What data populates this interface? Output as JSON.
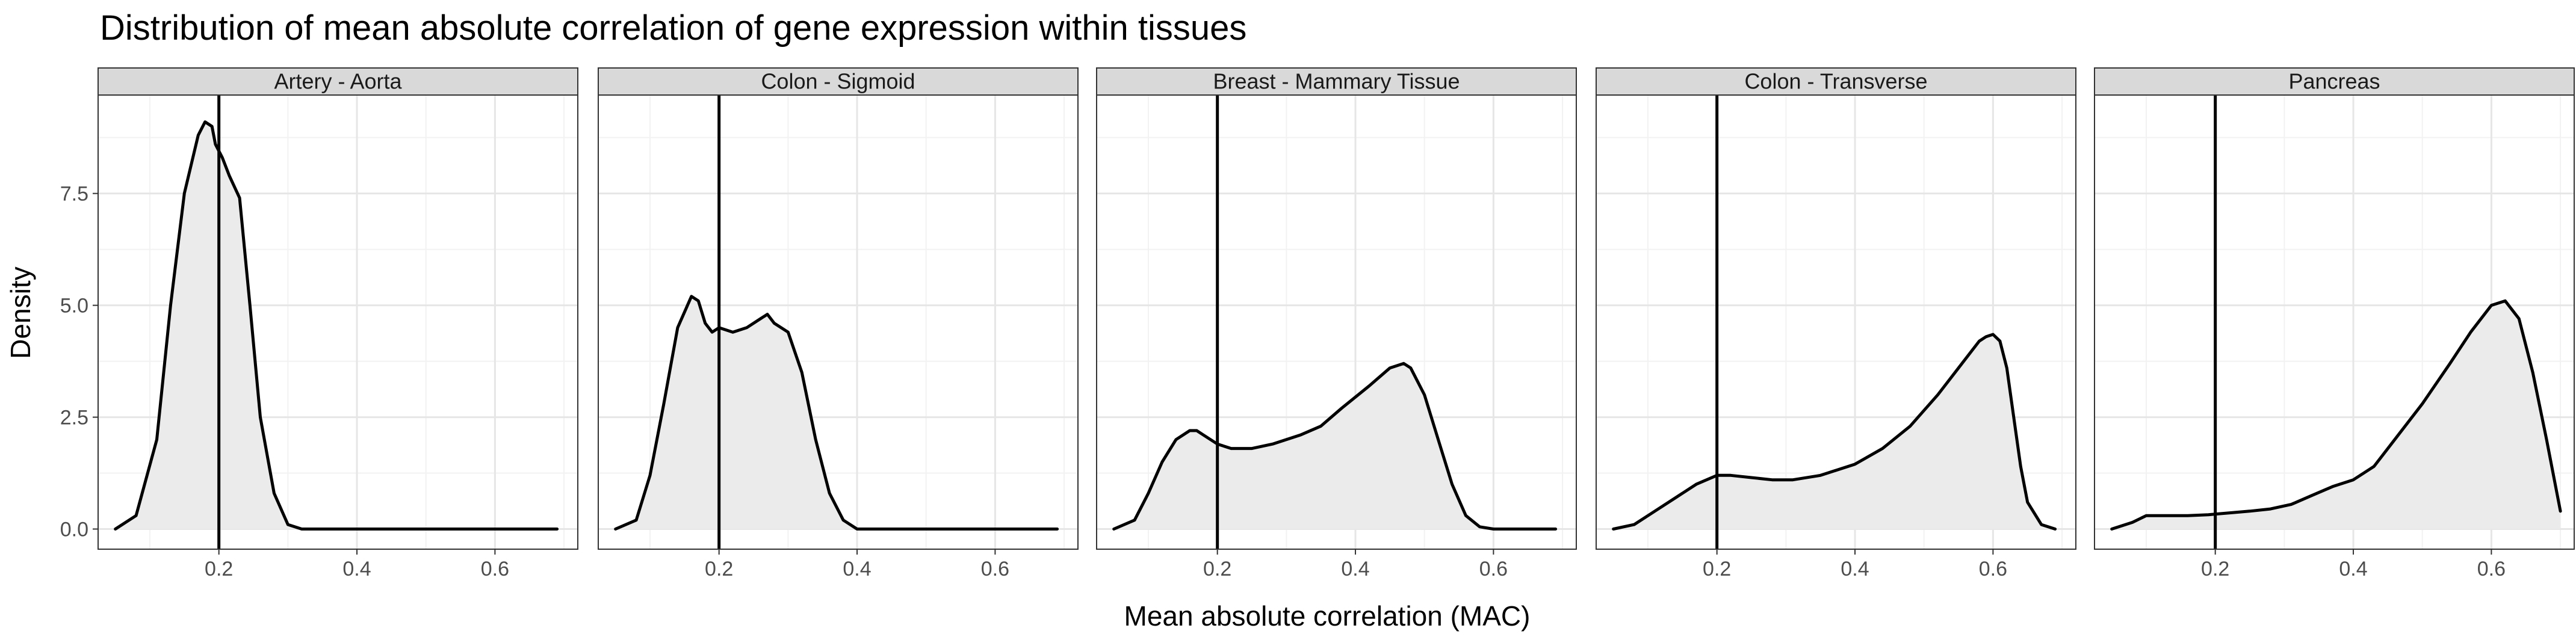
{
  "chart_data": {
    "type": "area",
    "title": "Distribution of mean absolute correlation of gene expression within tissues",
    "xlabel": "Mean absolute correlation (MAC)",
    "ylabel": "Density",
    "xlim": [
      0.025,
      0.72
    ],
    "ylim": [
      -0.45,
      9.7
    ],
    "x_ticks": [
      0.2,
      0.4,
      0.6
    ],
    "x_tick_labels": [
      "0.2",
      "0.4",
      "0.6"
    ],
    "y_ticks": [
      0,
      2.5,
      5,
      7.5
    ],
    "y_tick_labels": [
      "0.0",
      "2.5",
      "5.0",
      "7.5"
    ],
    "vline_x": 0.2,
    "grid": true,
    "line_color": "#000000",
    "fill_color": "#ebebeb",
    "strip_color": "#d9d9d9",
    "panels": [
      {
        "name": "Artery - Aorta",
        "x": [
          0.05,
          0.08,
          0.11,
          0.13,
          0.15,
          0.17,
          0.18,
          0.19,
          0.195,
          0.205,
          0.215,
          0.23,
          0.245,
          0.26,
          0.28,
          0.3,
          0.32,
          0.4,
          0.5,
          0.6,
          0.69
        ],
        "y": [
          0.0,
          0.3,
          2.0,
          5.0,
          7.5,
          8.8,
          9.1,
          9.0,
          8.6,
          8.3,
          7.9,
          7.4,
          5.0,
          2.5,
          0.8,
          0.1,
          0.0,
          0.0,
          0.0,
          0.0,
          0.0
        ]
      },
      {
        "name": "Colon - Sigmoid",
        "x": [
          0.05,
          0.08,
          0.1,
          0.12,
          0.14,
          0.16,
          0.17,
          0.18,
          0.19,
          0.2,
          0.22,
          0.24,
          0.26,
          0.27,
          0.28,
          0.3,
          0.32,
          0.34,
          0.36,
          0.38,
          0.4,
          0.45,
          0.55,
          0.69
        ],
        "y": [
          0.0,
          0.2,
          1.2,
          2.8,
          4.5,
          5.2,
          5.1,
          4.6,
          4.4,
          4.5,
          4.4,
          4.5,
          4.7,
          4.8,
          4.6,
          4.4,
          3.5,
          2.0,
          0.8,
          0.2,
          0.0,
          0.0,
          0.0,
          0.0
        ]
      },
      {
        "name": "Breast - Mammary Tissue",
        "x": [
          0.05,
          0.08,
          0.1,
          0.12,
          0.14,
          0.16,
          0.17,
          0.18,
          0.2,
          0.22,
          0.25,
          0.28,
          0.32,
          0.35,
          0.38,
          0.42,
          0.45,
          0.47,
          0.48,
          0.5,
          0.52,
          0.54,
          0.56,
          0.58,
          0.6,
          0.65,
          0.69
        ],
        "y": [
          0.0,
          0.2,
          0.8,
          1.5,
          2.0,
          2.2,
          2.2,
          2.1,
          1.9,
          1.8,
          1.8,
          1.9,
          2.1,
          2.3,
          2.7,
          3.2,
          3.6,
          3.7,
          3.6,
          3.0,
          2.0,
          1.0,
          0.3,
          0.05,
          0.0,
          0.0,
          0.0
        ]
      },
      {
        "name": "Colon - Transverse",
        "x": [
          0.05,
          0.08,
          0.11,
          0.14,
          0.17,
          0.2,
          0.22,
          0.25,
          0.28,
          0.31,
          0.35,
          0.4,
          0.44,
          0.48,
          0.52,
          0.55,
          0.58,
          0.59,
          0.6,
          0.61,
          0.62,
          0.63,
          0.64,
          0.65,
          0.67,
          0.69
        ],
        "y": [
          0.0,
          0.1,
          0.4,
          0.7,
          1.0,
          1.2,
          1.2,
          1.15,
          1.1,
          1.1,
          1.2,
          1.45,
          1.8,
          2.3,
          3.0,
          3.6,
          4.2,
          4.3,
          4.35,
          4.2,
          3.6,
          2.5,
          1.4,
          0.6,
          0.1,
          0.0
        ]
      },
      {
        "name": "Pancreas",
        "x": [
          0.05,
          0.08,
          0.1,
          0.13,
          0.16,
          0.19,
          0.22,
          0.25,
          0.28,
          0.31,
          0.34,
          0.37,
          0.4,
          0.43,
          0.46,
          0.5,
          0.54,
          0.57,
          0.6,
          0.62,
          0.64,
          0.66,
          0.68,
          0.7
        ],
        "y": [
          0.0,
          0.15,
          0.3,
          0.3,
          0.3,
          0.32,
          0.36,
          0.4,
          0.45,
          0.55,
          0.75,
          0.95,
          1.1,
          1.4,
          2.0,
          2.8,
          3.7,
          4.4,
          5.0,
          5.1,
          4.7,
          3.5,
          2.0,
          0.4
        ]
      }
    ]
  }
}
